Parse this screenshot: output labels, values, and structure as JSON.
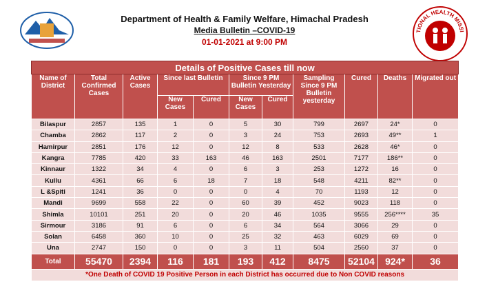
{
  "header": {
    "title": "Department of Health & Family Welfare, Himachal Pradesh",
    "subtitle": "Media Bulletin –COVID-19",
    "date": "01-01-2021 at 9:00 PM",
    "logo_text": "NATIONAL HEALTH MISSION"
  },
  "table": {
    "title": "Details of Positive Cases till now",
    "headers": {
      "district": "Name of District",
      "total": "Total Confirmed Cases",
      "active": "Active Cases",
      "since_last": "Since last Bulletin",
      "since_9pm": "Since 9 PM Bulletin Yesterday",
      "new_cases_1": "New Cases",
      "cured_1": "Cured",
      "new_cases_2": "New Cases",
      "cured_2": "Cured",
      "sampling": "Sampling Since 9 PM Bulletin yesterday",
      "cured": "Cured",
      "deaths": "Deaths",
      "migrated": "Migrated out"
    },
    "rows": [
      [
        "Bilaspur",
        "2857",
        "135",
        "1",
        "0",
        "5",
        "30",
        "799",
        "2697",
        "24*",
        "0"
      ],
      [
        "Chamba",
        "2862",
        "117",
        "2",
        "0",
        "3",
        "24",
        "753",
        "2693",
        "49**",
        "1"
      ],
      [
        "Hamirpur",
        "2851",
        "176",
        "12",
        "0",
        "12",
        "8",
        "533",
        "2628",
        "46*",
        "0"
      ],
      [
        "Kangra",
        "7785",
        "420",
        "33",
        "163",
        "46",
        "163",
        "2501",
        "7177",
        "186**",
        "0"
      ],
      [
        "Kinnaur",
        "1322",
        "34",
        "4",
        "0",
        "6",
        "3",
        "253",
        "1272",
        "16",
        "0"
      ],
      [
        "Kullu",
        "4361",
        "66",
        "6",
        "18",
        "7",
        "18",
        "548",
        "4211",
        "82**",
        "0"
      ],
      [
        "L &Spiti",
        "1241",
        "36",
        "0",
        "0",
        "0",
        "4",
        "70",
        "1193",
        "12",
        "0"
      ],
      [
        "Mandi",
        "9699",
        "558",
        "22",
        "0",
        "60",
        "39",
        "452",
        "9023",
        "118",
        "0"
      ],
      [
        "Shimla",
        "10101",
        "251",
        "20",
        "0",
        "20",
        "46",
        "1035",
        "9555",
        "256****",
        "35"
      ],
      [
        "Sirmour",
        "3186",
        "91",
        "6",
        "0",
        "6",
        "34",
        "564",
        "3066",
        "29",
        "0"
      ],
      [
        "Solan",
        "6458",
        "360",
        "10",
        "0",
        "25",
        "32",
        "463",
        "6029",
        "69",
        "0"
      ],
      [
        "Una",
        "2747",
        "150",
        "0",
        "0",
        "3",
        "11",
        "504",
        "2560",
        "37",
        "0"
      ]
    ],
    "total": [
      "Total",
      "55470",
      "2394",
      "116",
      "181",
      "193",
      "412",
      "8475",
      "52104",
      "924*",
      "36"
    ],
    "footnote": "*One Death of COVID 19 Positive Person in each District has occurred due to Non COVID reasons"
  }
}
